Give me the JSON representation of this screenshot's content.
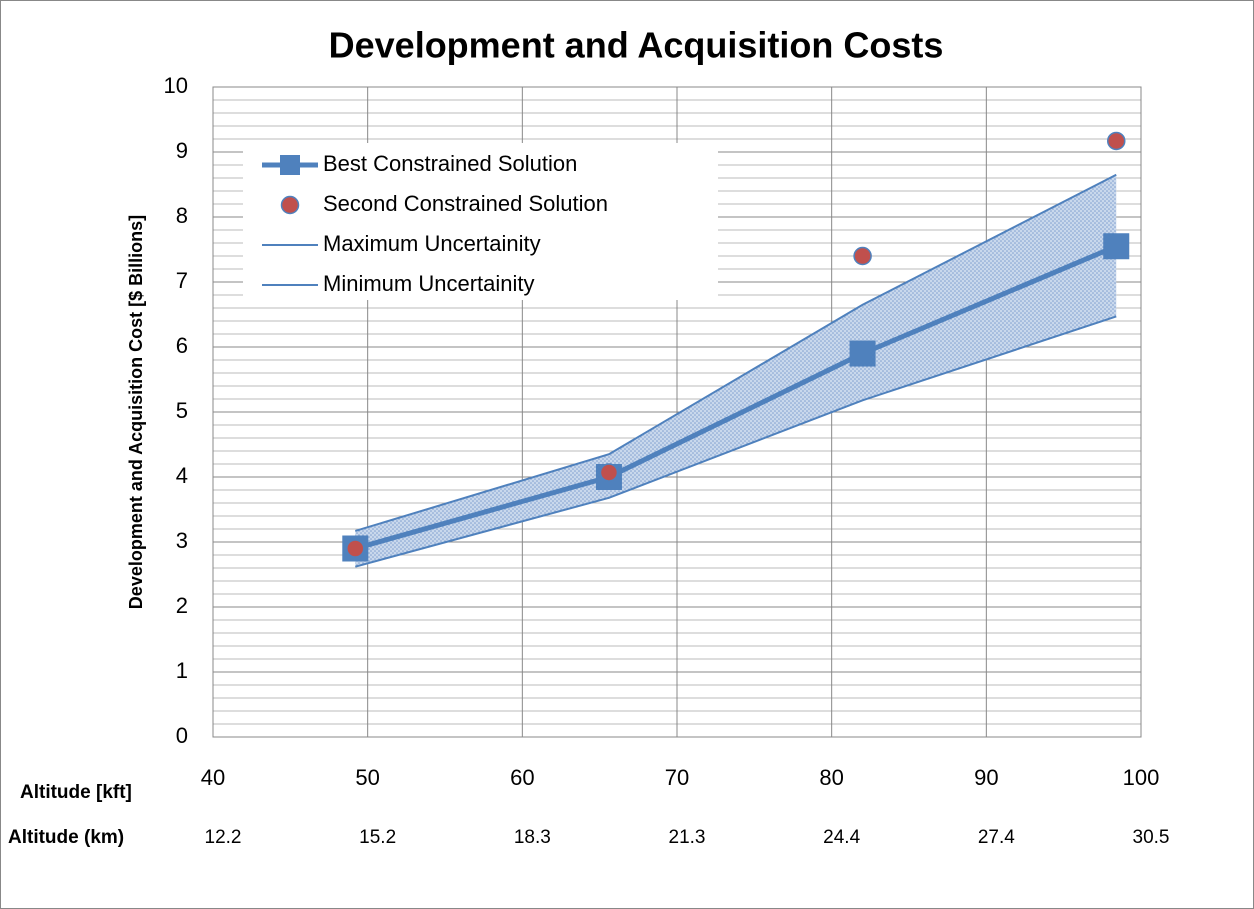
{
  "chart_data": {
    "type": "line",
    "title": "Development and Acquisition Costs",
    "ylabel": "Development and Acquisition Cost [$ Billions]",
    "xlabel": "Altitude [kft]",
    "x2label": "Altitude (km)",
    "x": [
      49.2,
      65.6,
      82,
      98.4
    ],
    "series": [
      {
        "name": "Best Constrained Solution",
        "color": "#4f81bd",
        "marker": "square",
        "values": [
          2.9,
          4.0,
          5.9,
          7.55
        ]
      },
      {
        "name": "Second Constrained Solution",
        "color": "#c0504d",
        "marker": "circle",
        "values": [
          2.9,
          4.07,
          7.4,
          9.17
        ]
      },
      {
        "name": "Maximum Uncertainity",
        "color": "#4f81bd",
        "values": [
          3.17,
          4.35,
          6.65,
          8.65
        ]
      },
      {
        "name": "Minimum Uncertainity",
        "color": "#4f81bd",
        "values": [
          2.62,
          3.68,
          5.18,
          6.47
        ]
      }
    ],
    "band_color": "#b8cce4",
    "xlim": [
      40,
      100
    ],
    "xticks": [
      40,
      50,
      60,
      70,
      80,
      90,
      100
    ],
    "x2ticks": [
      12.2,
      15.2,
      18.3,
      21.3,
      24.4,
      27.4,
      30.5
    ],
    "ylim": [
      0,
      10
    ],
    "yticks": [
      0,
      1,
      2,
      3,
      4,
      5,
      6,
      7,
      8,
      9,
      10
    ],
    "yminorticks": [
      0.2,
      0.4,
      0.6,
      0.8,
      1.2,
      1.4,
      1.6,
      1.8,
      2.2,
      2.4,
      2.6,
      2.8,
      3.2,
      3.4,
      3.6,
      3.8,
      4.2,
      4.4,
      4.6,
      4.8,
      5.2,
      5.4,
      5.6,
      5.8,
      6.2,
      6.4,
      6.6,
      6.8,
      7.2,
      7.4,
      7.6,
      7.8,
      8.2,
      8.4,
      8.6,
      8.8,
      9.2,
      9.4,
      9.6,
      9.8
    ],
    "grid": true,
    "legend": "upper left"
  }
}
